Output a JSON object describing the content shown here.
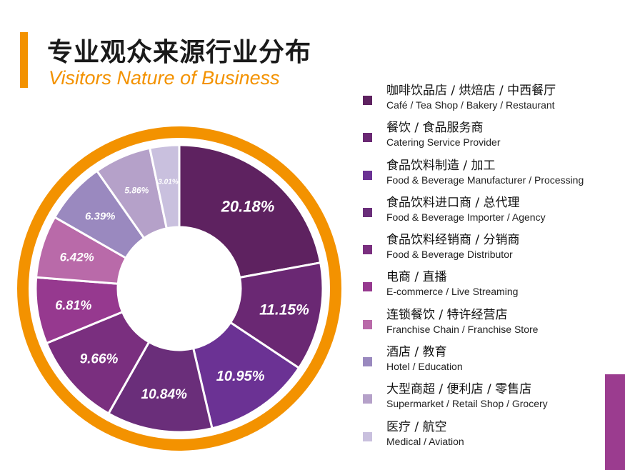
{
  "header": {
    "title_cn": "专业观众来源行业分布",
    "title_en": "Visitors Nature of Business"
  },
  "colors": {
    "accent": "#f39200",
    "side_block": "#9b3c8f"
  },
  "chart_data": {
    "type": "pie",
    "variant": "donut",
    "title": "专业观众来源行业分布",
    "subtitle": "Visitors Nature of Business",
    "legend_position": "right",
    "slices": [
      {
        "label_cn": "咖啡饮品店 / 烘焙店 / 中西餐厅",
        "label_en": "Café / Tea Shop / Bakery / Restaurant",
        "value": 20.18,
        "display": "20.18%",
        "color": "#5e2260"
      },
      {
        "label_cn": "餐饮 / 食品服务商",
        "label_en": "Catering Service Provider",
        "value": 11.15,
        "display": "11.15%",
        "color": "#6a2873"
      },
      {
        "label_cn": "食品饮料制造 / 加工",
        "label_en": "Food & Beverage Manufacturer / Processing",
        "value": 10.95,
        "display": "10.95%",
        "color": "#6b3294"
      },
      {
        "label_cn": "食品饮料进口商 / 总代理",
        "label_en": "Food & Beverage Importer / Agency",
        "value": 10.84,
        "display": "10.84%",
        "color": "#6a2e7a"
      },
      {
        "label_cn": "食品饮料经销商 / 分销商",
        "label_en": "Food & Beverage Distributor",
        "value": 9.66,
        "display": "9.66%",
        "color": "#7a2f7f"
      },
      {
        "label_cn": "电商 / 直播",
        "label_en": "E-commerce / Live Streaming",
        "value": 6.81,
        "display": "6.81%",
        "color": "#96398f"
      },
      {
        "label_cn": "连锁餐饮 / 特许经营店",
        "label_en": "Franchise Chain / Franchise Store",
        "value": 6.42,
        "display": "6.42%",
        "color": "#b96aa9"
      },
      {
        "label_cn": "酒店 / 教育",
        "label_en": "Hotel / Education",
        "value": 6.39,
        "display": "6.39%",
        "color": "#9a89bf"
      },
      {
        "label_cn": "大型商超 / 便利店 / 零售店",
        "label_en": "Supermarket / Retail Shop / Grocery",
        "value": 5.86,
        "display": "5.86%",
        "color": "#b5a1c9"
      },
      {
        "label_cn": "医疗 / 航空",
        "label_en": "Medical / Aviation",
        "value": 3.01,
        "display": "3.01%",
        "color": "#c9c0de"
      }
    ]
  }
}
